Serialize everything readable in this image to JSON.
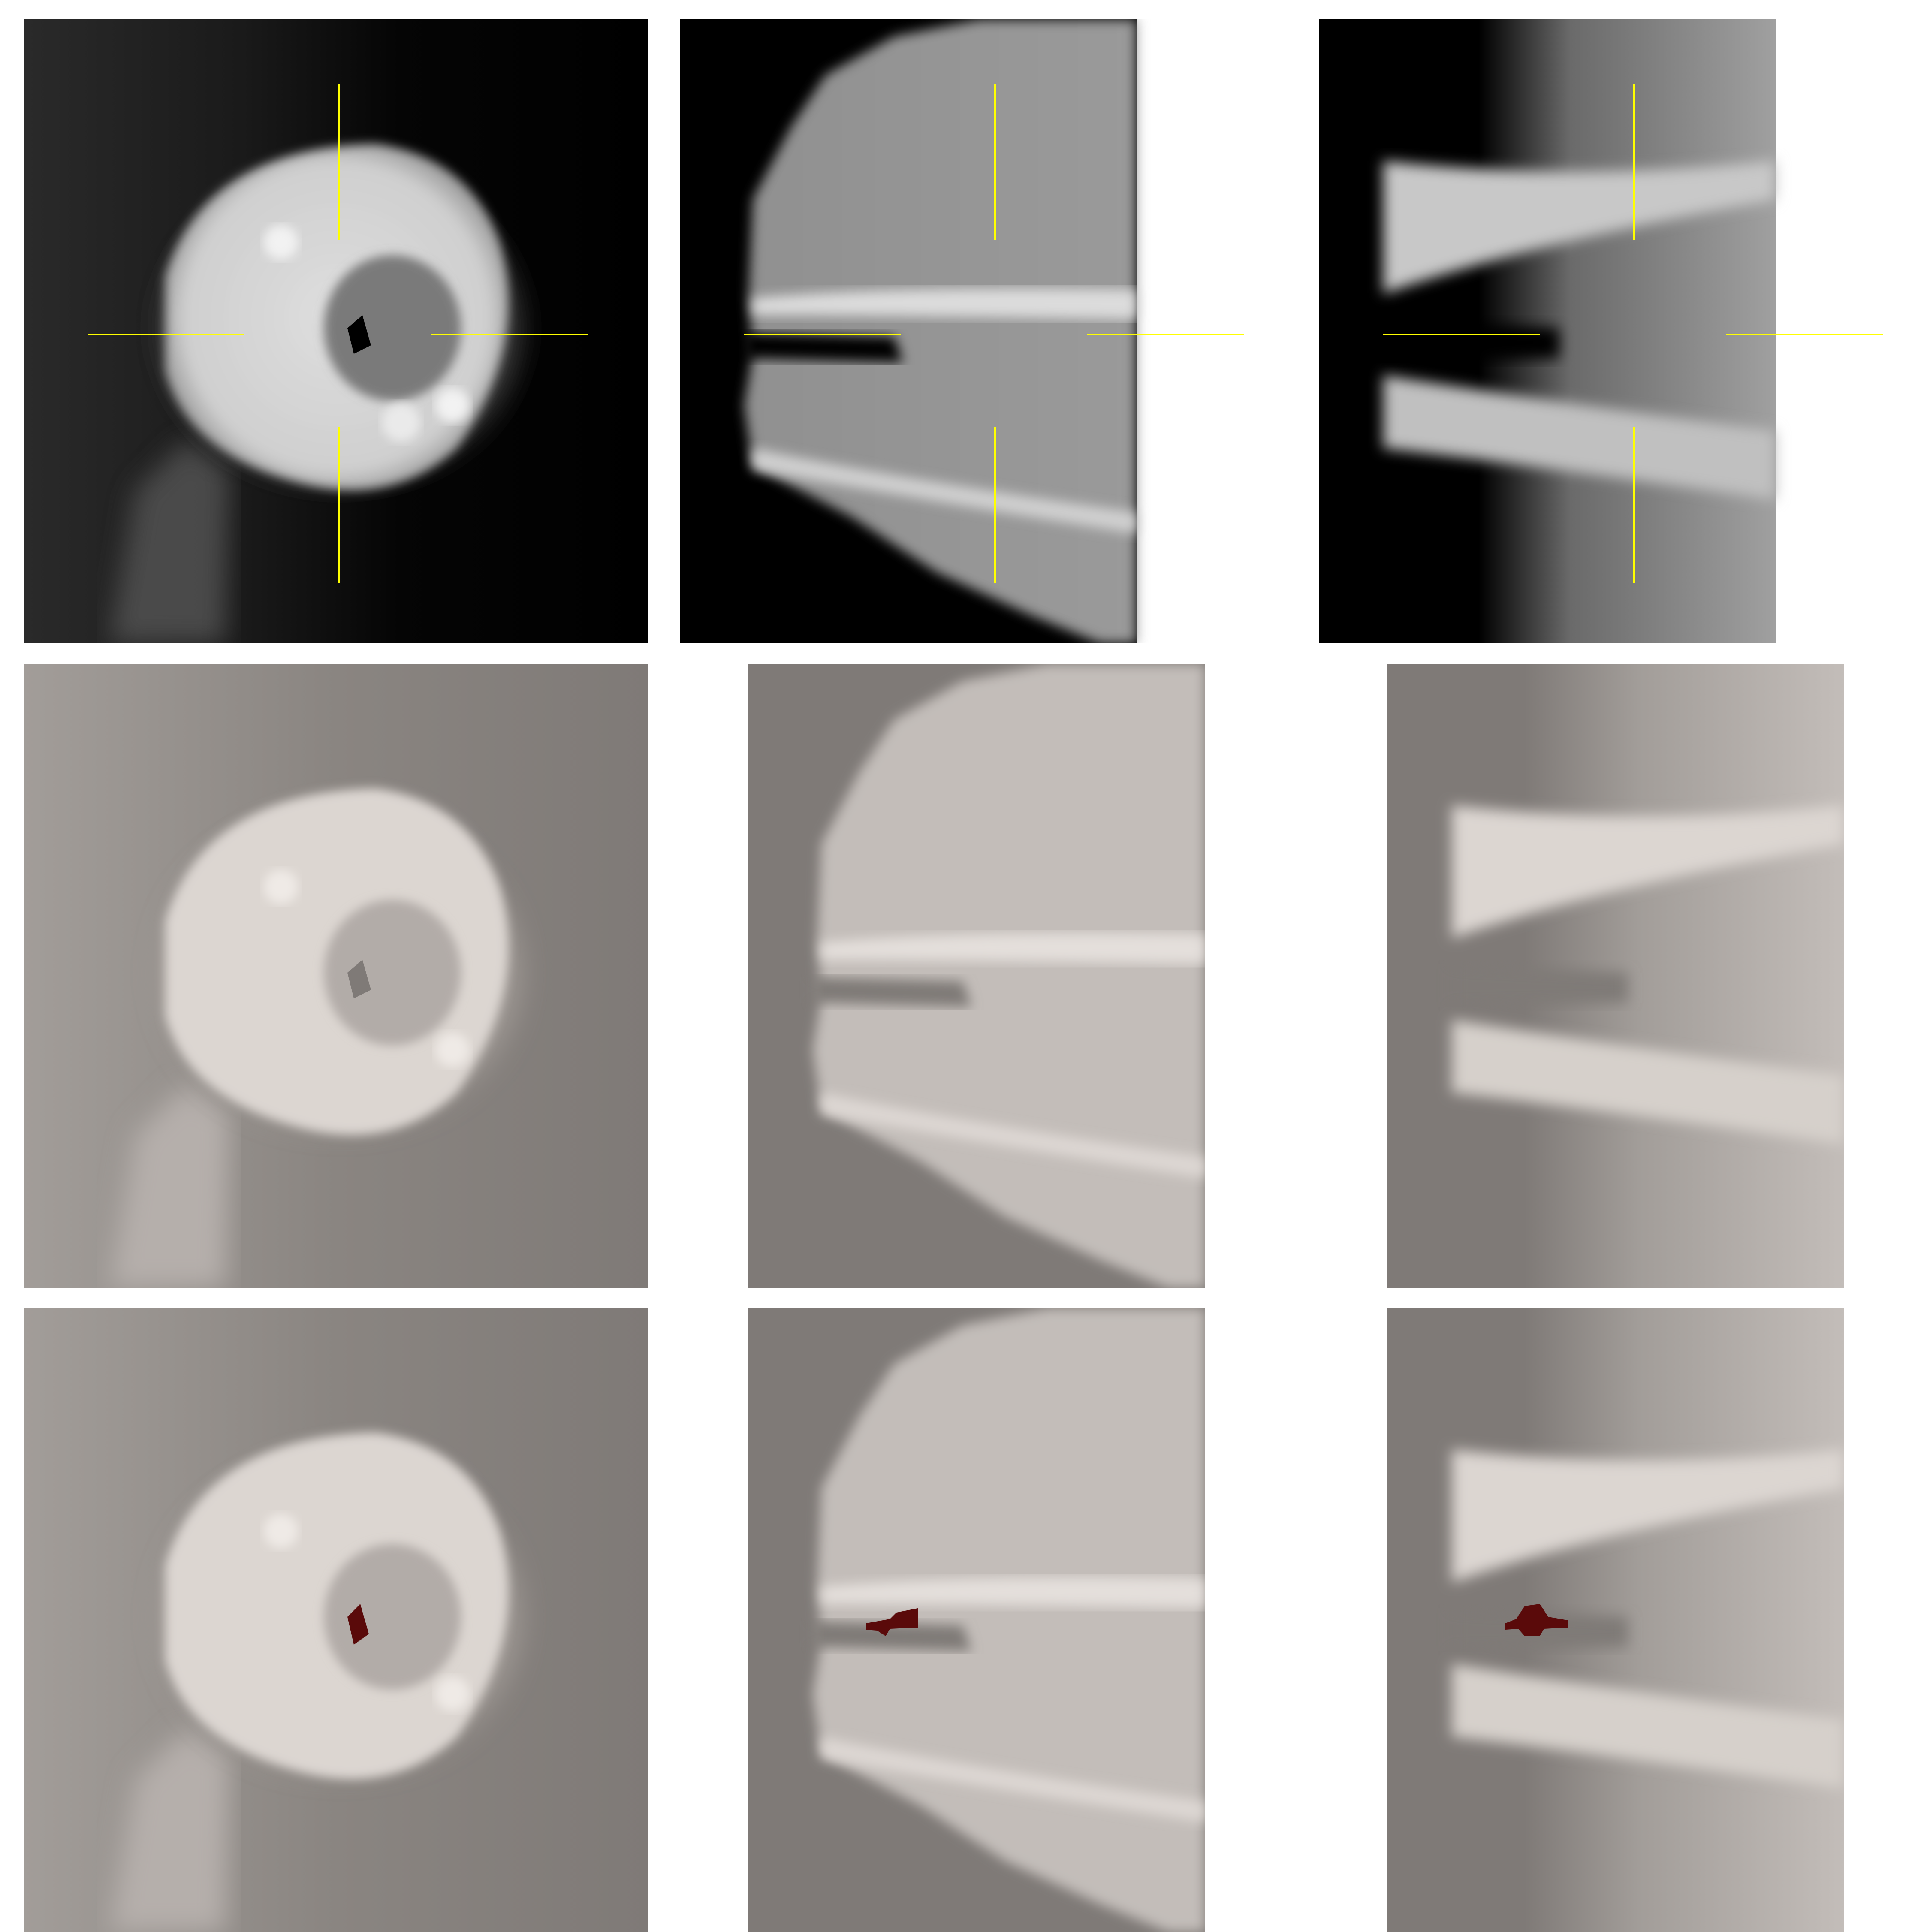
{
  "figure": {
    "rows": [
      {
        "name": "raw-mri",
        "display": "grayscale",
        "crosshair_shown": true,
        "colors": {
          "background": "#000000",
          "crosshair": "#ffff00"
        },
        "panels": [
          {
            "view": "short-axis"
          },
          {
            "view": "long-axis-2"
          },
          {
            "view": "long-axis-3"
          }
        ]
      },
      {
        "name": "windowed-mri",
        "display": "warm-gray",
        "crosshair_shown": false,
        "colors": {
          "background": "#7f7a77",
          "tissue": "#d8d2cd"
        },
        "panels": [
          {
            "view": "short-axis"
          },
          {
            "view": "long-axis-2"
          },
          {
            "view": "long-axis-3"
          }
        ]
      },
      {
        "name": "segmentation-overlay",
        "display": "warm-gray",
        "crosshair_shown": false,
        "colors": {
          "background": "#7f7a77",
          "tissue": "#d8d2cd",
          "mask": "#5a0a0a"
        },
        "panels": [
          {
            "view": "short-axis"
          },
          {
            "view": "long-axis-2"
          },
          {
            "view": "long-axis-3"
          }
        ]
      }
    ]
  }
}
